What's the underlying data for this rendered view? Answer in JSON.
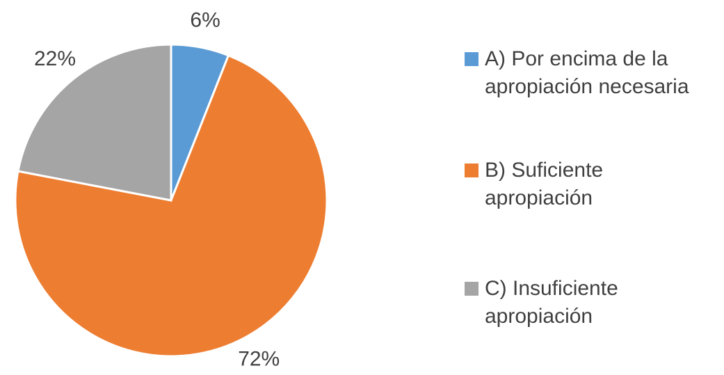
{
  "chart_data": {
    "type": "pie",
    "categories": [
      "A) Por encima de la apropiación necesaria",
      "B) Suficiente apropiación",
      "C) Insuficiente apropiación"
    ],
    "values": [
      6,
      72,
      22
    ],
    "value_labels": [
      "6%",
      "72%",
      "22%"
    ],
    "colors": [
      "#5b9bd5",
      "#ed7d31",
      "#a5a5a5"
    ],
    "legend": "right"
  }
}
